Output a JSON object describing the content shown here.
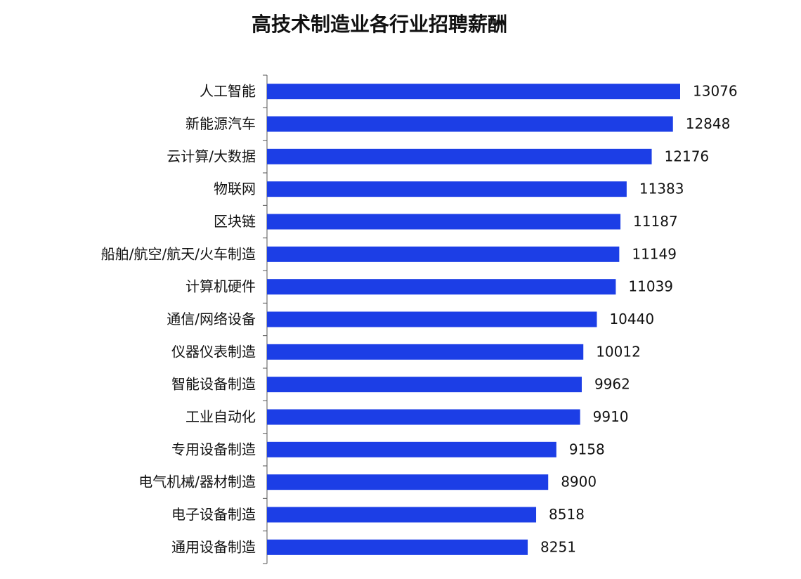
{
  "chart_data": {
    "type": "barh",
    "title": "高技术制造业各行业招聘薪酬",
    "categories": [
      "人工智能",
      "新能源汽车",
      "云计算/大数据",
      "物联网",
      "区块链",
      "船舶/航空/航天/火车制造",
      "计算机硬件",
      "通信/网络设备",
      "仪器仪表制造",
      "智能设备制造",
      "工业自动化",
      "专用设备制造",
      "电气机械/器材制造",
      "电子设备制造",
      "通用设备制造"
    ],
    "values": [
      13076,
      12848,
      12176,
      11383,
      11187,
      11149,
      11039,
      10440,
      10012,
      9962,
      9910,
      9158,
      8900,
      8518,
      8251
    ],
    "color": "#1c3ee6"
  }
}
